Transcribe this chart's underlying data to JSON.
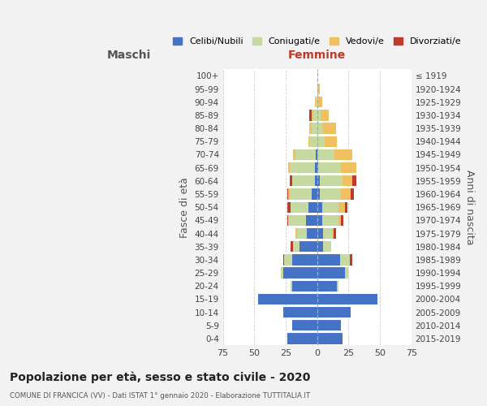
{
  "age_groups": [
    "0-4",
    "5-9",
    "10-14",
    "15-19",
    "20-24",
    "25-29",
    "30-34",
    "35-39",
    "40-44",
    "45-49",
    "50-54",
    "55-59",
    "60-64",
    "65-69",
    "70-74",
    "75-79",
    "80-84",
    "85-89",
    "90-94",
    "95-99",
    "100+"
  ],
  "birth_years": [
    "2015-2019",
    "2010-2014",
    "2005-2009",
    "2000-2004",
    "1995-1999",
    "1990-1994",
    "1985-1989",
    "1980-1984",
    "1975-1979",
    "1970-1974",
    "1965-1969",
    "1960-1964",
    "1955-1959",
    "1950-1954",
    "1945-1949",
    "1940-1944",
    "1935-1939",
    "1930-1934",
    "1925-1929",
    "1920-1924",
    "≤ 1919"
  ],
  "maschi": {
    "celibi": [
      24,
      20,
      27,
      47,
      20,
      27,
      20,
      14,
      8,
      9,
      7,
      4,
      2,
      2,
      1,
      0,
      0,
      0,
      0,
      0,
      0
    ],
    "coniugati": [
      0,
      0,
      0,
      0,
      1,
      2,
      6,
      5,
      8,
      14,
      14,
      18,
      18,
      20,
      16,
      6,
      4,
      3,
      1,
      0,
      0
    ],
    "vedovi": [
      0,
      0,
      0,
      0,
      0,
      0,
      0,
      0,
      1,
      0,
      0,
      1,
      0,
      1,
      2,
      1,
      2,
      1,
      1,
      0,
      0
    ],
    "divorziati": [
      0,
      0,
      0,
      0,
      0,
      0,
      1,
      2,
      0,
      1,
      3,
      1,
      2,
      0,
      0,
      0,
      0,
      2,
      0,
      0,
      0
    ]
  },
  "femmine": {
    "nubili": [
      20,
      19,
      27,
      48,
      16,
      22,
      18,
      5,
      5,
      4,
      4,
      2,
      2,
      1,
      0,
      0,
      0,
      0,
      0,
      0,
      0
    ],
    "coniugate": [
      0,
      0,
      0,
      0,
      1,
      3,
      8,
      6,
      7,
      13,
      13,
      17,
      18,
      18,
      14,
      6,
      5,
      3,
      1,
      1,
      0
    ],
    "vedove": [
      0,
      0,
      0,
      0,
      0,
      0,
      0,
      0,
      1,
      2,
      5,
      8,
      8,
      12,
      14,
      10,
      10,
      6,
      3,
      1,
      0
    ],
    "divorziate": [
      0,
      0,
      0,
      0,
      0,
      0,
      2,
      0,
      2,
      2,
      2,
      2,
      3,
      0,
      0,
      0,
      0,
      0,
      0,
      0,
      0
    ]
  },
  "colors": {
    "celibi": "#4472c4",
    "coniugati": "#c5d9a0",
    "vedovi": "#f0c060",
    "divorziati": "#c0392b"
  },
  "xlim": 75,
  "title": "Popolazione per età, sesso e stato civile - 2020",
  "subtitle": "COMUNE DI FRANCICA (VV) - Dati ISTAT 1° gennaio 2020 - Elaborazione TUTTITALIA.IT",
  "ylabel_left": "Fasce di età",
  "ylabel_right": "Anni di nascita",
  "xlabel_left": "Maschi",
  "xlabel_right": "Femmine",
  "legend_labels": [
    "Celibi/Nubili",
    "Coniugati/e",
    "Vedovi/e",
    "Divorziati/e"
  ],
  "bg_color": "#f2f2f2",
  "plot_bg_color": "#ffffff"
}
